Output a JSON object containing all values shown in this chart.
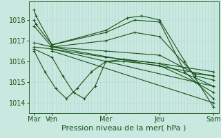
{
  "bg_color": "#c8e8e0",
  "line_color": "#1a5218",
  "grid_color_v": "#b0d8d0",
  "grid_color_h": "#b8ddd8",
  "xlabel": "Pression niveau de la mer( hPa )",
  "ylim": [
    1013.5,
    1018.9
  ],
  "yticks": [
    1014,
    1015,
    1016,
    1017,
    1018
  ],
  "xlabel_fontsize": 8,
  "tick_fontsize": 7,
  "xtick_labels": [
    "Mar",
    "Ven",
    "Mer",
    "Jeu",
    "Sam"
  ],
  "xtick_positions": [
    0,
    0.5,
    2.0,
    3.5,
    5.0
  ],
  "xlim": [
    -0.15,
    5.15
  ],
  "lines": [
    {
      "x": [
        0,
        0.05,
        0.5,
        2.0,
        2.6,
        3.0,
        3.5,
        4.2,
        5.0
      ],
      "y": [
        1018.5,
        1018.2,
        1016.8,
        1017.5,
        1018.1,
        1018.2,
        1018.0,
        1016.0,
        1013.8
      ]
    },
    {
      "x": [
        0,
        0.05,
        0.5,
        2.0,
        2.8,
        3.5,
        4.2,
        5.0
      ],
      "y": [
        1018.0,
        1017.8,
        1016.8,
        1017.4,
        1018.0,
        1017.9,
        1015.5,
        1014.2
      ]
    },
    {
      "x": [
        0,
        0.5,
        2.0,
        2.8,
        3.5,
        4.5,
        5.0
      ],
      "y": [
        1017.7,
        1016.7,
        1017.0,
        1017.4,
        1017.2,
        1015.3,
        1015.1
      ]
    },
    {
      "x": [
        0,
        0.5,
        2.0,
        3.5,
        4.5,
        5.0
      ],
      "y": [
        1016.9,
        1016.7,
        1016.5,
        1016.3,
        1015.4,
        1015.3
      ]
    },
    {
      "x": [
        0,
        0.5,
        2.0,
        3.5,
        5.0
      ],
      "y": [
        1016.7,
        1016.6,
        1016.2,
        1015.9,
        1015.5
      ]
    },
    {
      "x": [
        0,
        0.5,
        0.8,
        1.1,
        1.4,
        1.7,
        2.0,
        2.5,
        3.5,
        4.5,
        5.0
      ],
      "y": [
        1016.6,
        1016.2,
        1015.3,
        1014.5,
        1014.2,
        1014.8,
        1016.0,
        1016.1,
        1015.9,
        1015.2,
        1014.8
      ]
    },
    {
      "x": [
        0,
        0.3,
        0.6,
        0.9,
        1.2,
        1.6,
        2.0,
        2.5,
        3.5,
        4.5,
        5.0
      ],
      "y": [
        1016.5,
        1015.5,
        1014.7,
        1014.2,
        1014.7,
        1015.5,
        1016.0,
        1016.0,
        1015.8,
        1015.0,
        1014.5
      ]
    },
    {
      "x": [
        0.5,
        5.0
      ],
      "y": [
        1016.7,
        1015.3
      ]
    },
    {
      "x": [
        0.5,
        5.0
      ],
      "y": [
        1016.6,
        1014.8
      ]
    },
    {
      "x": [
        0.5,
        5.0
      ],
      "y": [
        1016.5,
        1014.0
      ]
    }
  ]
}
